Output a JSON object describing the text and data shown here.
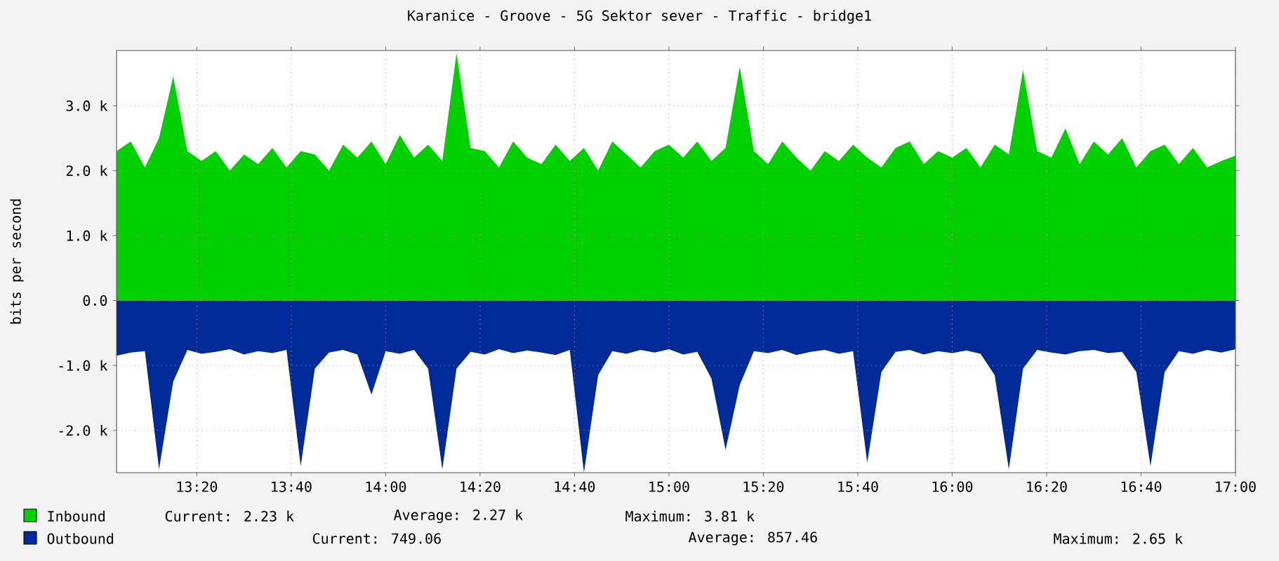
{
  "chart_data": {
    "type": "area",
    "title": "Karanice - Groove - 5G Sektor sever - Traffic - bridge1",
    "ylabel": "bits per second",
    "x": [
      13.05,
      13.1,
      13.15,
      13.2,
      13.25,
      13.3,
      13.35,
      13.4,
      13.45,
      13.5,
      13.55,
      13.6,
      13.65,
      13.7,
      13.75,
      13.8,
      13.85,
      13.9,
      13.95,
      14.0,
      14.05,
      14.1,
      14.15,
      14.2,
      14.25,
      14.3,
      14.35,
      14.4,
      14.45,
      14.5,
      14.55,
      14.6,
      14.65,
      14.7,
      14.75,
      14.8,
      14.85,
      14.9,
      14.95,
      15.0,
      15.05,
      15.1,
      15.15,
      15.2,
      15.25,
      15.3,
      15.35,
      15.4,
      15.45,
      15.5,
      15.55,
      15.6,
      15.65,
      15.7,
      15.75,
      15.8,
      15.85,
      15.9,
      15.95,
      16.0,
      16.05,
      16.1,
      16.15,
      16.2,
      16.25,
      16.3,
      16.35,
      16.4,
      16.45,
      16.5,
      16.55,
      16.6,
      16.65,
      16.7,
      16.75,
      16.8,
      16.85,
      16.9,
      16.95,
      17.0
    ],
    "series": [
      {
        "name": "Inbound",
        "color": "#00cf00",
        "values": [
          2300,
          2450,
          2050,
          2500,
          3450,
          2300,
          2150,
          2300,
          2000,
          2250,
          2100,
          2350,
          2050,
          2300,
          2250,
          2000,
          2400,
          2200,
          2450,
          2100,
          2550,
          2200,
          2400,
          2150,
          3810,
          2350,
          2300,
          2050,
          2450,
          2200,
          2100,
          2400,
          2150,
          2350,
          2000,
          2450,
          2250,
          2050,
          2300,
          2400,
          2200,
          2450,
          2150,
          2350,
          3600,
          2300,
          2100,
          2450,
          2200,
          2000,
          2300,
          2150,
          2400,
          2200,
          2050,
          2350,
          2450,
          2100,
          2300,
          2200,
          2350,
          2050,
          2400,
          2250,
          3550,
          2300,
          2200,
          2650,
          2100,
          2450,
          2250,
          2500,
          2050,
          2300,
          2400,
          2100,
          2350,
          2050,
          2150,
          2230
        ]
      },
      {
        "name": "Outbound",
        "color": "#002a97",
        "values": [
          -850,
          -800,
          -780,
          -2600,
          -1250,
          -760,
          -820,
          -790,
          -750,
          -830,
          -780,
          -810,
          -760,
          -2550,
          -1050,
          -800,
          -760,
          -830,
          -1450,
          -780,
          -820,
          -760,
          -1050,
          -2600,
          -1050,
          -790,
          -830,
          -750,
          -810,
          -770,
          -800,
          -840,
          -760,
          -2650,
          -1150,
          -780,
          -820,
          -760,
          -800,
          -750,
          -830,
          -790,
          -1200,
          -2300,
          -1300,
          -780,
          -810,
          -760,
          -840,
          -790,
          -760,
          -820,
          -780,
          -2500,
          -1100,
          -790,
          -760,
          -830,
          -780,
          -810,
          -770,
          -820,
          -1150,
          -2600,
          -1050,
          -760,
          -800,
          -830,
          -780,
          -760,
          -810,
          -790,
          -1100,
          -2550,
          -1100,
          -780,
          -820,
          -760,
          -800,
          -750
        ]
      }
    ],
    "xlim": [
      13.05,
      17.0
    ],
    "xticks": [
      {
        "value": 13.3333,
        "label": "13:20"
      },
      {
        "value": 13.6667,
        "label": "13:40"
      },
      {
        "value": 14.0,
        "label": "14:00"
      },
      {
        "value": 14.3333,
        "label": "14:20"
      },
      {
        "value": 14.6667,
        "label": "14:40"
      },
      {
        "value": 15.0,
        "label": "15:00"
      },
      {
        "value": 15.3333,
        "label": "15:20"
      },
      {
        "value": 15.6667,
        "label": "15:40"
      },
      {
        "value": 16.0,
        "label": "16:00"
      },
      {
        "value": 16.3333,
        "label": "16:20"
      },
      {
        "value": 16.6667,
        "label": "16:40"
      },
      {
        "value": 17.0,
        "label": "17:00"
      }
    ],
    "ylim": [
      -2650,
      3850
    ],
    "yticks": [
      {
        "value": -2000,
        "label": "-2.0 k"
      },
      {
        "value": -1000,
        "label": "-1.0 k"
      },
      {
        "value": 0,
        "label": "0.0"
      },
      {
        "value": 1000,
        "label": "1.0 k"
      },
      {
        "value": 2000,
        "label": "2.0 k"
      },
      {
        "value": 3000,
        "label": "3.0 k"
      }
    ],
    "grid": true,
    "legend": "bottom",
    "annotations": [
      "Current: 2.23 k",
      "Average: 2.27 k",
      "Maximum: 3.81 k",
      "Current: 749.06",
      "Average: 857.46",
      "Maximum: 2.65 k"
    ]
  }
}
